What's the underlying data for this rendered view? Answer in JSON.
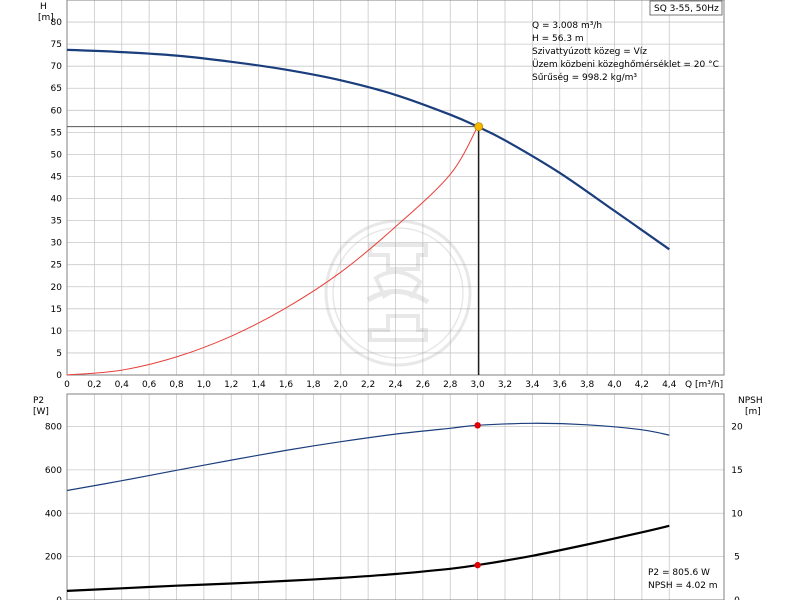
{
  "pump_label": "SQ 3-55, 50Hz",
  "info_lines": [
    "Q = 3.008 m³/h",
    "H = 56.3 m",
    "Szivattyúzott közeg = Víz",
    "Üzem közbeni közeghőmérséklet = 20 °C",
    "Sűrűség = 998.2 kg/m³"
  ],
  "bottom_info_lines": [
    "P2 = 805.6 W",
    "NPSH = 4.02 m"
  ],
  "colors": {
    "head_curve": "#1a3d7c",
    "system_curve": "#e8403a",
    "p2_curve": "#1a3d7c",
    "npsh_curve": "#000000",
    "duty_point": "#f5b800",
    "marker": "#e00000",
    "guide": "#000000"
  },
  "chart_data": [
    {
      "type": "line",
      "title": "",
      "xlabel": "Q [m³/h]",
      "ylabel": "H\n[m]",
      "x_unit_label": "Q [m³/h]",
      "y_axis_label": "H",
      "y_unit": "[m]",
      "xlim": [
        0,
        4.8
      ],
      "ylim": [
        0,
        85
      ],
      "x_ticks": [
        "0",
        "0,2",
        "0,4",
        "0,6",
        "0,8",
        "1,0",
        "1,2",
        "1,4",
        "1,6",
        "1,8",
        "2,0",
        "2,2",
        "2,4",
        "2,6",
        "2,8",
        "3,0",
        "3,2",
        "3,4",
        "3,6",
        "3,8",
        "4,0",
        "4,2",
        "4,4"
      ],
      "y_ticks": [
        "0",
        "5",
        "10",
        "15",
        "20",
        "25",
        "30",
        "35",
        "40",
        "45",
        "50",
        "55",
        "60",
        "65",
        "70",
        "75",
        "80"
      ],
      "grid": true,
      "series": [
        {
          "key": "head",
          "x": [
            0,
            0.4,
            0.8,
            1.2,
            1.6,
            2.0,
            2.4,
            2.8,
            3.0,
            3.2,
            3.6,
            4.0,
            4.4
          ],
          "y": [
            73.7,
            73.2,
            72.4,
            71.0,
            69.2,
            66.8,
            63.5,
            59.0,
            56.3,
            53.2,
            45.8,
            37.2,
            28.5
          ]
        },
        {
          "key": "system",
          "x": [
            0,
            0.4,
            0.8,
            1.2,
            1.6,
            2.0,
            2.4,
            2.8,
            3.0
          ],
          "y": [
            0,
            1.1,
            4.1,
            8.8,
            15.2,
            23.3,
            33.6,
            45.5,
            56.3
          ]
        }
      ],
      "duty_point": {
        "x": 3.008,
        "y": 56.3
      }
    },
    {
      "type": "line",
      "title": "",
      "xlabel": "",
      "left_axis_label": "P2",
      "left_unit": "[W]",
      "right_axis_label": "NPSH",
      "right_unit": "[m]",
      "xlim": [
        0,
        4.8
      ],
      "ylim": [
        0,
        950
      ],
      "y2lim": [
        0,
        23.75
      ],
      "y_ticks": [
        "0",
        "200",
        "400",
        "600",
        "800"
      ],
      "y2_ticks": [
        "0",
        "5",
        "10",
        "15",
        "20"
      ],
      "grid": true,
      "series": [
        {
          "key": "p2",
          "x": [
            0,
            0.4,
            0.8,
            1.2,
            1.6,
            2.0,
            2.4,
            2.8,
            3.0,
            3.4,
            3.8,
            4.2,
            4.4
          ],
          "y": [
            505,
            550,
            598,
            645,
            690,
            730,
            765,
            792,
            805.6,
            815,
            808,
            785,
            760
          ]
        },
        {
          "key": "npsh",
          "x": [
            0,
            0.4,
            0.8,
            1.2,
            1.6,
            2.0,
            2.4,
            2.8,
            3.0,
            3.4,
            3.8,
            4.2,
            4.4
          ],
          "y": [
            1.05,
            1.35,
            1.65,
            1.9,
            2.2,
            2.55,
            3.0,
            3.6,
            4.02,
            5.1,
            6.4,
            7.8,
            8.55
          ]
        }
      ],
      "markers": [
        {
          "series": "p2",
          "x": 3.0,
          "y": 805.6
        },
        {
          "series": "npsh",
          "x": 3.0,
          "y": 4.02
        }
      ]
    }
  ]
}
